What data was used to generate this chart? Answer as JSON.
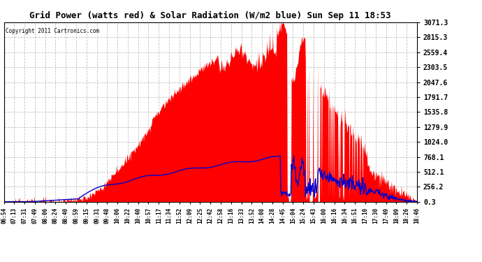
{
  "title": "Grid Power (watts red) & Solar Radiation (W/m2 blue) Sun Sep 11 18:53",
  "copyright": "Copyright 2011 Cartronics.com",
  "yticks": [
    0.3,
    256.2,
    512.1,
    768.1,
    1024.0,
    1279.9,
    1535.8,
    1791.7,
    2047.6,
    2303.5,
    2559.4,
    2815.3,
    3071.3
  ],
  "ymin": 0.3,
  "ymax": 3071.3,
  "bg_color": "#ffffff",
  "grid_color": "#bbbbbb",
  "red_color": "#ff0000",
  "blue_color": "#0000cc",
  "xtick_labels": [
    "06:54",
    "07:13",
    "07:31",
    "07:49",
    "08:06",
    "08:24",
    "08:40",
    "08:59",
    "09:15",
    "09:31",
    "09:48",
    "10:06",
    "10:22",
    "10:40",
    "10:57",
    "11:17",
    "11:34",
    "11:52",
    "12:09",
    "12:25",
    "12:42",
    "12:58",
    "13:16",
    "13:33",
    "13:52",
    "14:08",
    "14:28",
    "14:45",
    "15:04",
    "15:24",
    "15:43",
    "16:00",
    "16:16",
    "16:34",
    "16:51",
    "17:10",
    "17:30",
    "17:49",
    "18:09",
    "18:26",
    "18:46"
  ]
}
